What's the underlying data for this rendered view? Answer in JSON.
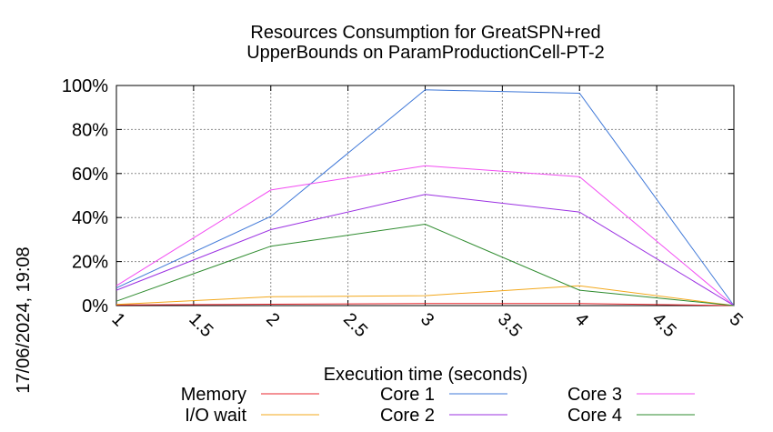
{
  "chart_data": {
    "type": "line",
    "title_line1": "Resources Consumption for GreatSPN+red",
    "title_line2": "UpperBounds on ParamProductionCell-PT-2",
    "xlabel": "Execution time (seconds)",
    "ylabel": "",
    "side_label": "17/06/2024, 19:08",
    "xlim": [
      1,
      5
    ],
    "ylim": [
      0,
      100
    ],
    "x_ticks": [
      1,
      1.5,
      2,
      2.5,
      3,
      3.5,
      4,
      4.5,
      5
    ],
    "x_tick_labels": [
      "1",
      "1.5",
      "2",
      "2.5",
      "3",
      "3.5",
      "4",
      "4.5",
      "5"
    ],
    "y_ticks": [
      0,
      20,
      40,
      60,
      80,
      100
    ],
    "y_tick_labels": [
      "0%",
      "20%",
      "40%",
      "60%",
      "80%",
      "100%"
    ],
    "grid": true,
    "legend_position": "bottom",
    "series": [
      {
        "name": "Memory",
        "color": "#e8262c",
        "x": [
          1,
          2,
          3,
          4,
          5
        ],
        "values": [
          0.3,
          0.6,
          0.9,
          0.9,
          0
        ]
      },
      {
        "name": "Core 1",
        "color": "#3f78d8",
        "x": [
          1,
          2,
          3,
          4,
          5
        ],
        "values": [
          8,
          40.5,
          98,
          96.5,
          0
        ]
      },
      {
        "name": "Core 3",
        "color": "#f24cf2",
        "x": [
          1,
          2,
          3,
          4,
          5
        ],
        "values": [
          9,
          52.5,
          63.5,
          58.5,
          0
        ]
      },
      {
        "name": "I/O wait",
        "color": "#f3a81b",
        "x": [
          1,
          2,
          3,
          4,
          5
        ],
        "values": [
          0.5,
          4,
          4.5,
          9,
          0
        ]
      },
      {
        "name": "Core 2",
        "color": "#9b30e2",
        "x": [
          1,
          2,
          3,
          4,
          5
        ],
        "values": [
          7,
          34.5,
          50.5,
          42.5,
          0
        ]
      },
      {
        "name": "Core 4",
        "color": "#2e8b2e",
        "x": [
          1,
          2,
          3,
          4,
          5
        ],
        "values": [
          2,
          27,
          37,
          7,
          0
        ]
      }
    ]
  }
}
